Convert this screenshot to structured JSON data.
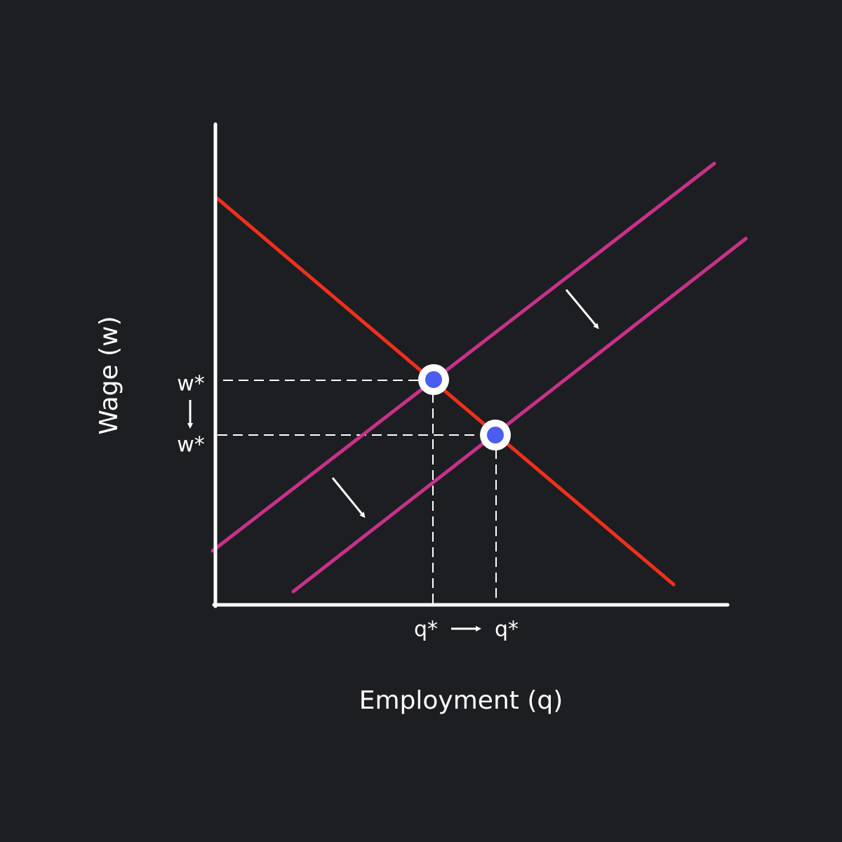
{
  "axes": {
    "x_label": "Employment (q)",
    "y_label": "Wage (w)"
  },
  "y_ticks": [
    "w*",
    "w*"
  ],
  "x_ticks": [
    "q*",
    "q*"
  ]
}
